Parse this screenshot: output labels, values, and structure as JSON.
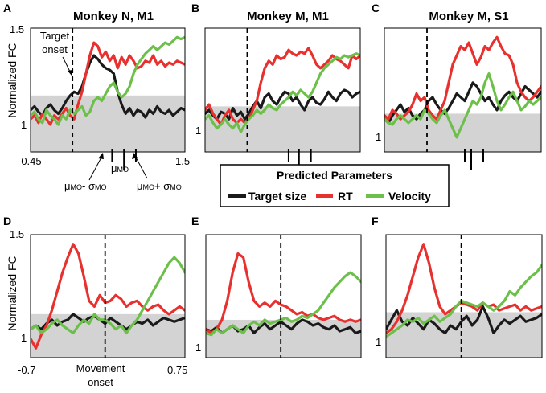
{
  "figure": {
    "ylabel": "Normalized FC",
    "legend": {
      "title": "Predicted Parameters",
      "entries": [
        {
          "name": "Target size",
          "color": "#1a1a1a"
        },
        {
          "name": "RT",
          "color": "#e8312e"
        },
        {
          "name": "Velocity",
          "color": "#6cc04a"
        }
      ]
    },
    "shading_color": "#d3d3d3",
    "annotations": {
      "target_onset": "Target onset",
      "target_onset_line1": "Target",
      "target_onset_line2": "onset",
      "movement_onset_line1": "Movement",
      "movement_onset_line2": "onset",
      "mu_minus_main": "μ",
      "mu_minus_sub": "MO",
      "mu_minus_op": "- σ",
      "mu_minus_sub2": "MO",
      "mu_main": "μ",
      "mu_sub": "MO",
      "mu_plus_main": "μ",
      "mu_plus_sub": "MO",
      "mu_plus_op": "+ σ",
      "mu_plus_sub2": "MO"
    }
  },
  "chart_data": [
    {
      "id": "A",
      "panel_label": "A",
      "title": "Monkey N, M1",
      "type": "line",
      "xlim": [
        -0.45,
        1.5
      ],
      "ylim": [
        0.82,
        1.5
      ],
      "x_tick_labels": [
        "-0.45",
        "1.5"
      ],
      "y_tick_labels": [
        "1.5",
        "1"
      ],
      "shaded_band": [
        0.82,
        1.13
      ],
      "event_x": 0.08,
      "event_label": "Target onset",
      "movement_onset_markers": [
        0.58,
        0.73,
        0.88
      ],
      "x": [
        -0.45,
        -0.4,
        -0.35,
        -0.3,
        -0.25,
        -0.2,
        -0.15,
        -0.1,
        -0.05,
        0.0,
        0.05,
        0.1,
        0.15,
        0.2,
        0.25,
        0.3,
        0.35,
        0.4,
        0.45,
        0.5,
        0.55,
        0.6,
        0.65,
        0.7,
        0.75,
        0.8,
        0.85,
        0.9,
        0.95,
        1.0,
        1.05,
        1.1,
        1.15,
        1.2,
        1.25,
        1.3,
        1.35,
        1.4,
        1.45,
        1.5
      ],
      "series": [
        {
          "name": "Target size",
          "color": "#1a1a1a",
          "values": [
            1.05,
            1.07,
            1.04,
            1.02,
            1.06,
            1.08,
            1.05,
            1.03,
            1.06,
            1.1,
            1.13,
            1.15,
            1.14,
            1.18,
            1.25,
            1.31,
            1.35,
            1.33,
            1.3,
            1.28,
            1.27,
            1.25,
            1.15,
            1.08,
            1.03,
            1.06,
            1.02,
            1.05,
            1.04,
            1.01,
            1.05,
            1.03,
            1.07,
            1.04,
            1.03,
            1.05,
            1.02,
            1.04,
            1.06,
            1.05
          ]
        },
        {
          "name": "RT",
          "color": "#e8312e",
          "values": [
            1.0,
            1.02,
            0.98,
            1.03,
            1.0,
            0.97,
            1.02,
            1.0,
            1.03,
            1.06,
            1.02,
            1.0,
            1.08,
            1.15,
            1.25,
            1.35,
            1.42,
            1.4,
            1.34,
            1.37,
            1.32,
            1.35,
            1.28,
            1.34,
            1.3,
            1.35,
            1.32,
            1.28,
            1.29,
            1.32,
            1.31,
            1.35,
            1.3,
            1.32,
            1.29,
            1.31,
            1.3,
            1.32,
            1.31,
            1.3
          ]
        },
        {
          "name": "Velocity",
          "color": "#6cc04a",
          "values": [
            1.02,
            1.04,
            1.0,
            0.98,
            1.05,
            1.02,
            1.0,
            0.97,
            1.02,
            1.0,
            1.05,
            1.03,
            1.05,
            1.07,
            1.02,
            1.04,
            1.1,
            1.12,
            1.1,
            1.14,
            1.18,
            1.2,
            1.15,
            1.12,
            1.14,
            1.18,
            1.25,
            1.3,
            1.33,
            1.36,
            1.38,
            1.4,
            1.38,
            1.4,
            1.42,
            1.41,
            1.43,
            1.45,
            1.44,
            1.45
          ]
        }
      ]
    },
    {
      "id": "B",
      "panel_label": "B",
      "title": "Monkey M, M1",
      "type": "line",
      "xlim": [
        -0.45,
        1.5
      ],
      "ylim": [
        0.82,
        1.5
      ],
      "y_tick_labels": [
        "1"
      ],
      "shaded_band": [
        0.82,
        1.07
      ],
      "event_x": 0.08,
      "movement_onset_markers": [
        0.6,
        0.73,
        0.88
      ],
      "x": [
        -0.45,
        -0.4,
        -0.35,
        -0.3,
        -0.25,
        -0.2,
        -0.15,
        -0.1,
        -0.05,
        0.0,
        0.05,
        0.1,
        0.15,
        0.2,
        0.25,
        0.3,
        0.35,
        0.4,
        0.45,
        0.5,
        0.55,
        0.6,
        0.65,
        0.7,
        0.75,
        0.8,
        0.85,
        0.9,
        0.95,
        1.0,
        1.05,
        1.1,
        1.15,
        1.2,
        1.25,
        1.3,
        1.35,
        1.4,
        1.45,
        1.5
      ],
      "series": [
        {
          "name": "Target size",
          "color": "#1a1a1a",
          "values": [
            1.03,
            1.05,
            1.02,
            1.0,
            1.04,
            1.03,
            1.0,
            1.06,
            1.02,
            1.04,
            1.0,
            1.03,
            1.07,
            1.1,
            1.06,
            1.12,
            1.14,
            1.1,
            1.08,
            1.12,
            1.15,
            1.14,
            1.1,
            1.12,
            1.08,
            1.05,
            1.1,
            1.12,
            1.09,
            1.08,
            1.11,
            1.15,
            1.12,
            1.1,
            1.14,
            1.16,
            1.15,
            1.12,
            1.14,
            1.15
          ]
        },
        {
          "name": "RT",
          "color": "#e8312e",
          "values": [
            1.05,
            1.08,
            1.03,
            1.0,
            0.97,
            1.02,
            1.05,
            1.0,
            0.98,
            1.0,
            0.98,
            1.0,
            1.05,
            1.1,
            1.2,
            1.28,
            1.32,
            1.3,
            1.35,
            1.33,
            1.34,
            1.38,
            1.36,
            1.35,
            1.37,
            1.36,
            1.39,
            1.35,
            1.3,
            1.28,
            1.3,
            1.32,
            1.35,
            1.33,
            1.32,
            1.3,
            1.28,
            1.35,
            1.33,
            1.35
          ]
        },
        {
          "name": "Velocity",
          "color": "#6cc04a",
          "values": [
            1.0,
            1.02,
            0.98,
            0.95,
            0.97,
            1.0,
            0.97,
            0.95,
            0.98,
            0.93,
            0.97,
            1.0,
            1.02,
            1.05,
            1.03,
            1.05,
            1.08,
            1.06,
            1.05,
            1.08,
            1.1,
            1.12,
            1.15,
            1.13,
            1.16,
            1.14,
            1.12,
            1.15,
            1.2,
            1.25,
            1.28,
            1.3,
            1.32,
            1.34,
            1.33,
            1.35,
            1.34,
            1.35,
            1.36,
            1.35
          ]
        }
      ]
    },
    {
      "id": "C",
      "panel_label": "C",
      "title": "Monkey M, S1",
      "type": "line",
      "xlim": [
        -0.45,
        1.5
      ],
      "ylim": [
        0.82,
        1.5
      ],
      "y_tick_labels": [
        "1"
      ],
      "shaded_band": [
        0.82,
        1.03
      ],
      "event_x": 0.08,
      "movement_onset_markers": [
        0.55,
        0.63,
        0.78
      ],
      "x": [
        -0.45,
        -0.4,
        -0.35,
        -0.3,
        -0.25,
        -0.2,
        -0.15,
        -0.1,
        -0.05,
        0.0,
        0.05,
        0.1,
        0.15,
        0.2,
        0.25,
        0.3,
        0.35,
        0.4,
        0.45,
        0.5,
        0.55,
        0.6,
        0.65,
        0.7,
        0.75,
        0.8,
        0.85,
        0.9,
        0.95,
        1.0,
        1.05,
        1.1,
        1.15,
        1.2,
        1.25,
        1.3,
        1.35,
        1.4,
        1.45,
        1.5
      ],
      "series": [
        {
          "name": "Target size",
          "color": "#1a1a1a",
          "values": [
            1.0,
            0.98,
            1.02,
            1.05,
            1.08,
            1.04,
            1.06,
            1.02,
            1.0,
            1.03,
            1.05,
            1.1,
            1.12,
            1.08,
            1.05,
            1.03,
            1.06,
            1.1,
            1.14,
            1.12,
            1.1,
            1.15,
            1.2,
            1.18,
            1.14,
            1.1,
            1.12,
            1.08,
            1.05,
            1.1,
            1.13,
            1.15,
            1.12,
            1.1,
            1.14,
            1.18,
            1.16,
            1.14,
            1.12,
            1.15
          ]
        },
        {
          "name": "RT",
          "color": "#e8312e",
          "values": [
            1.02,
            1.0,
            1.05,
            1.03,
            1.0,
            1.02,
            1.04,
            1.08,
            1.14,
            1.1,
            1.12,
            1.05,
            1.02,
            1.0,
            1.05,
            1.1,
            1.2,
            1.3,
            1.35,
            1.4,
            1.38,
            1.42,
            1.36,
            1.3,
            1.34,
            1.4,
            1.38,
            1.42,
            1.45,
            1.4,
            1.36,
            1.35,
            1.3,
            1.2,
            1.15,
            1.12,
            1.1,
            1.12,
            1.15,
            1.18
          ]
        },
        {
          "name": "Velocity",
          "color": "#6cc04a",
          "values": [
            1.0,
            0.98,
            0.97,
            1.0,
            1.02,
            1.0,
            0.98,
            1.0,
            1.02,
            1.0,
            1.05,
            1.03,
            1.0,
            0.98,
            1.02,
            1.05,
            1.0,
            0.95,
            0.9,
            0.95,
            1.0,
            1.05,
            1.1,
            1.08,
            1.12,
            1.2,
            1.25,
            1.18,
            1.1,
            1.05,
            1.08,
            1.12,
            1.15,
            1.1,
            1.05,
            1.07,
            1.1,
            1.08,
            1.1,
            1.12
          ]
        }
      ]
    },
    {
      "id": "D",
      "panel_label": "D",
      "title": "",
      "type": "line",
      "xlim": [
        -0.7,
        0.75
      ],
      "ylim": [
        0.85,
        1.5
      ],
      "x_tick_labels": [
        "-0.7",
        "0.75"
      ],
      "y_tick_labels": [
        "1.5",
        "1"
      ],
      "shaded_band": [
        0.85,
        1.08
      ],
      "event_x": 0.0,
      "event_label": "Movement onset",
      "x": [
        -0.7,
        -0.65,
        -0.6,
        -0.55,
        -0.5,
        -0.45,
        -0.4,
        -0.35,
        -0.3,
        -0.25,
        -0.2,
        -0.15,
        -0.1,
        -0.05,
        0.0,
        0.05,
        0.1,
        0.15,
        0.2,
        0.25,
        0.3,
        0.35,
        0.4,
        0.45,
        0.5,
        0.55,
        0.6,
        0.65,
        0.7,
        0.75
      ],
      "series": [
        {
          "name": "Target size",
          "color": "#1a1a1a",
          "values": [
            1.0,
            1.02,
            1.0,
            1.03,
            1.05,
            1.02,
            1.04,
            1.05,
            1.08,
            1.06,
            1.04,
            1.06,
            1.07,
            1.05,
            1.03,
            1.06,
            1.04,
            1.02,
            1.0,
            1.02,
            1.04,
            1.03,
            1.05,
            1.02,
            1.04,
            1.06,
            1.05,
            1.04,
            1.05,
            1.06
          ]
        },
        {
          "name": "RT",
          "color": "#e8312e",
          "values": [
            0.95,
            0.9,
            0.97,
            1.02,
            1.1,
            1.2,
            1.3,
            1.38,
            1.45,
            1.4,
            1.28,
            1.15,
            1.12,
            1.18,
            1.14,
            1.15,
            1.18,
            1.16,
            1.12,
            1.14,
            1.15,
            1.12,
            1.1,
            1.12,
            1.13,
            1.1,
            1.08,
            1.1,
            1.12,
            1.1
          ]
        },
        {
          "name": "Velocity",
          "color": "#6cc04a",
          "values": [
            1.0,
            1.02,
            0.98,
            1.0,
            1.03,
            1.05,
            1.02,
            1.0,
            0.98,
            1.02,
            1.05,
            1.03,
            1.08,
            1.05,
            1.05,
            1.03,
            1.0,
            1.02,
            0.98,
            1.02,
            1.05,
            1.1,
            1.15,
            1.2,
            1.25,
            1.3,
            1.35,
            1.38,
            1.35,
            1.3
          ]
        }
      ]
    },
    {
      "id": "E",
      "panel_label": "E",
      "title": "",
      "type": "line",
      "xlim": [
        -0.7,
        0.75
      ],
      "ylim": [
        0.85,
        1.5
      ],
      "y_tick_labels": [
        "1"
      ],
      "shaded_band": [
        0.85,
        1.05
      ],
      "event_x": 0.0,
      "x": [
        -0.7,
        -0.65,
        -0.6,
        -0.55,
        -0.5,
        -0.45,
        -0.4,
        -0.35,
        -0.3,
        -0.25,
        -0.2,
        -0.15,
        -0.1,
        -0.05,
        0.0,
        0.05,
        0.1,
        0.15,
        0.2,
        0.25,
        0.3,
        0.35,
        0.4,
        0.45,
        0.5,
        0.55,
        0.6,
        0.65,
        0.7,
        0.75
      ],
      "series": [
        {
          "name": "Target size",
          "color": "#1a1a1a",
          "values": [
            1.0,
            0.99,
            1.01,
            0.98,
            1.0,
            1.02,
            0.99,
            1.0,
            1.02,
            0.98,
            1.01,
            1.03,
            1.0,
            1.02,
            1.04,
            1.02,
            1.0,
            1.03,
            1.05,
            1.04,
            1.02,
            1.03,
            1.01,
            1.0,
            1.02,
            0.99,
            1.0,
            1.01,
            0.98,
            0.99
          ]
        },
        {
          "name": "RT",
          "color": "#e8312e",
          "values": [
            1.0,
            0.98,
            1.0,
            1.05,
            1.15,
            1.3,
            1.4,
            1.38,
            1.25,
            1.15,
            1.12,
            1.14,
            1.12,
            1.15,
            1.13,
            1.12,
            1.1,
            1.08,
            1.09,
            1.07,
            1.08,
            1.06,
            1.05,
            1.06,
            1.07,
            1.05,
            1.04,
            1.05,
            1.04,
            1.05
          ]
        },
        {
          "name": "Velocity",
          "color": "#6cc04a",
          "values": [
            0.98,
            0.97,
            1.0,
            0.98,
            1.0,
            1.02,
            1.0,
            0.98,
            1.02,
            1.04,
            1.02,
            1.05,
            1.03,
            1.04,
            1.05,
            1.06,
            1.04,
            1.05,
            1.07,
            1.06,
            1.08,
            1.1,
            1.14,
            1.18,
            1.22,
            1.25,
            1.28,
            1.3,
            1.28,
            1.25
          ]
        }
      ]
    },
    {
      "id": "F",
      "panel_label": "F",
      "title": "",
      "type": "line",
      "xlim": [
        -0.7,
        0.75
      ],
      "ylim": [
        0.85,
        1.5
      ],
      "y_tick_labels": [
        "1"
      ],
      "shaded_band": [
        0.85,
        1.09
      ],
      "event_x": 0.0,
      "x": [
        -0.7,
        -0.65,
        -0.6,
        -0.55,
        -0.5,
        -0.45,
        -0.4,
        -0.35,
        -0.3,
        -0.25,
        -0.2,
        -0.15,
        -0.1,
        -0.05,
        0.0,
        0.05,
        0.1,
        0.15,
        0.2,
        0.25,
        0.3,
        0.35,
        0.4,
        0.45,
        0.5,
        0.55,
        0.6,
        0.65,
        0.7,
        0.75
      ],
      "series": [
        {
          "name": "Target size",
          "color": "#1a1a1a",
          "values": [
            1.0,
            1.05,
            1.1,
            1.04,
            1.02,
            1.06,
            1.03,
            1.0,
            1.05,
            1.03,
            1.0,
            0.98,
            1.02,
            1.0,
            1.04,
            1.07,
            1.02,
            1.05,
            1.12,
            1.06,
            0.98,
            1.02,
            1.05,
            1.03,
            1.05,
            1.07,
            1.04,
            1.05,
            1.06,
            1.08
          ]
        },
        {
          "name": "RT",
          "color": "#e8312e",
          "values": [
            0.98,
            1.0,
            1.04,
            1.1,
            1.18,
            1.28,
            1.38,
            1.45,
            1.35,
            1.22,
            1.12,
            1.08,
            1.1,
            1.12,
            1.14,
            1.13,
            1.12,
            1.1,
            1.14,
            1.12,
            1.13,
            1.1,
            1.11,
            1.12,
            1.13,
            1.1,
            1.12,
            1.1,
            1.11,
            1.12
          ]
        },
        {
          "name": "Velocity",
          "color": "#6cc04a",
          "values": [
            0.96,
            0.98,
            1.0,
            1.02,
            1.05,
            1.04,
            1.06,
            1.03,
            1.05,
            1.07,
            1.04,
            1.06,
            1.08,
            1.12,
            1.15,
            1.14,
            1.13,
            1.12,
            1.14,
            1.12,
            1.1,
            1.12,
            1.15,
            1.2,
            1.18,
            1.22,
            1.25,
            1.28,
            1.3,
            1.34
          ]
        }
      ]
    }
  ]
}
